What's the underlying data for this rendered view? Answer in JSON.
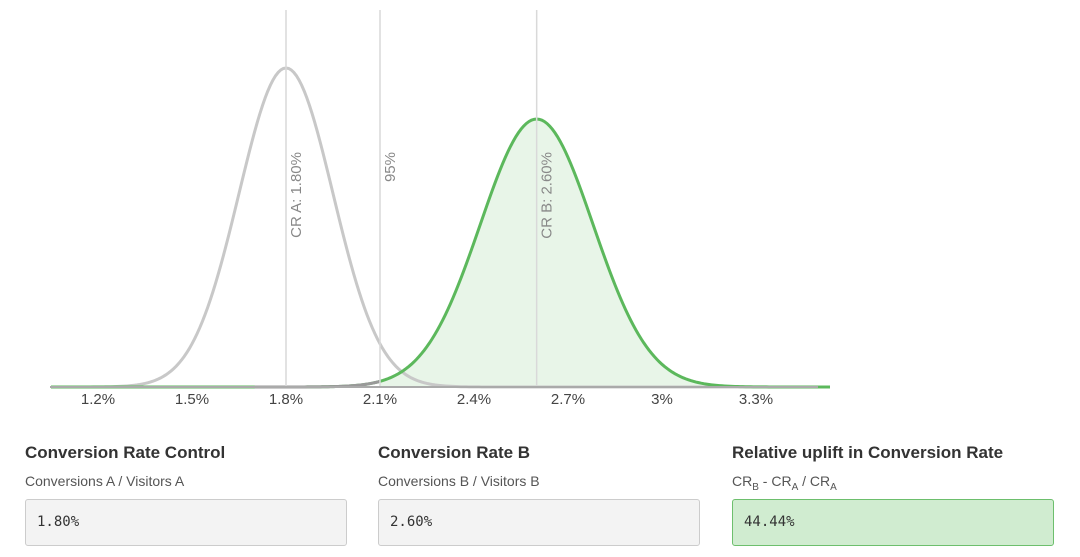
{
  "chart_data": {
    "type": "area",
    "x_ticks": [
      1.2,
      1.5,
      1.8,
      2.1,
      2.4,
      2.7,
      3.0,
      3.3
    ],
    "x_tick_labels": [
      "1.2%",
      "1.5%",
      "1.8%",
      "2.1%",
      "2.4%",
      "2.7%",
      "3%",
      "3.3%"
    ],
    "xlim": [
      1.05,
      3.55
    ],
    "series": [
      {
        "name": "CR A",
        "mean": 1.8,
        "sd": 0.15,
        "peak": 1.0,
        "color": "#c8c8c8",
        "fill": false
      },
      {
        "name": "CR B",
        "mean": 2.6,
        "sd": 0.18,
        "peak": 0.84,
        "color": "#5cb85c",
        "fill": true,
        "fill_from": 2.1
      }
    ],
    "reference_lines": [
      {
        "x": 1.8,
        "label": "CR A: 1.80%"
      },
      {
        "x": 2.1,
        "label": "95%"
      },
      {
        "x": 2.6,
        "label": "CR B: 2.60%"
      }
    ],
    "grid": false
  },
  "metrics": {
    "control": {
      "title": "Conversion Rate Control",
      "subtitle": "Conversions A / Visitors A",
      "value": "1.80%"
    },
    "variant": {
      "title": "Conversion Rate B",
      "subtitle": "Conversions B / Visitors B",
      "value": "2.60%"
    },
    "uplift": {
      "title": "Relative uplift in Conversion Rate",
      "formula": {
        "t1": "CR",
        "s1": "B",
        "t2": " - CR",
        "s2": "A",
        "t3": " / CR",
        "s3": "A"
      },
      "value": "44.44%"
    }
  }
}
